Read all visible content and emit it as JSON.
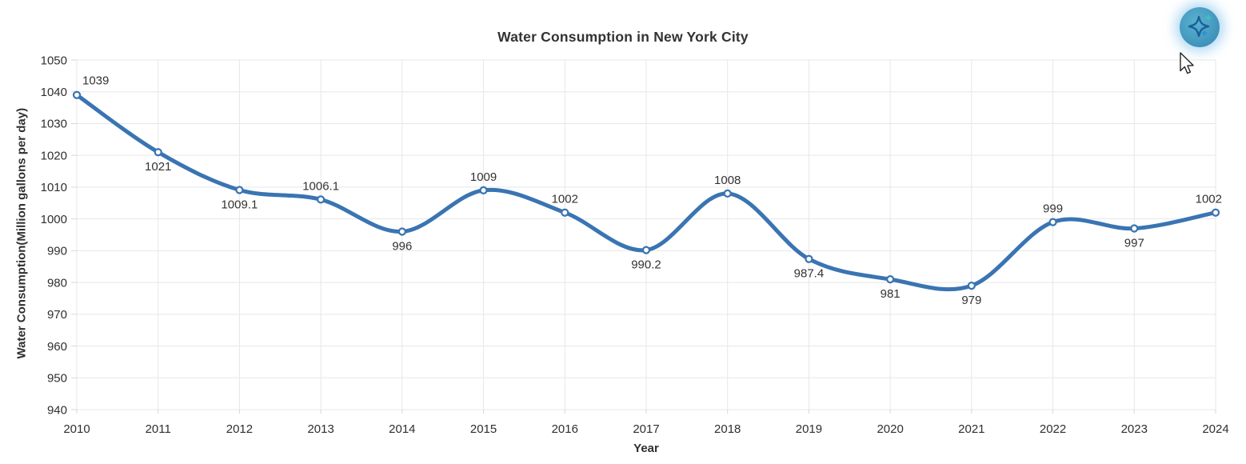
{
  "header": {
    "title": "Water Consumption in New York City"
  },
  "assistant": {
    "icon_name": "ai-sparkle-orb-icon"
  },
  "chart_data": {
    "type": "line",
    "title": "Water Consumption in New York City",
    "xlabel": "Year",
    "ylabel": "Water Consumption(Million gallons per day)",
    "categories": [
      "2010",
      "2011",
      "2012",
      "2013",
      "2014",
      "2015",
      "2016",
      "2017",
      "2018",
      "2019",
      "2020",
      "2021",
      "2022",
      "2023",
      "2024"
    ],
    "series": [
      {
        "name": "Water Consumption",
        "values": [
          1039,
          1021,
          1009.1,
          1006.1,
          996,
          1009,
          1002,
          990.2,
          1008,
          987.4,
          981,
          979,
          999,
          997,
          1002
        ],
        "labels": [
          "1039",
          "1021",
          "1009.1",
          "1006.1",
          "996",
          "1009",
          "1002",
          "990.2",
          "1008",
          "987.4",
          "981",
          "979",
          "999",
          "997",
          "1002"
        ],
        "label_positions": [
          "above-right",
          "below",
          "below",
          "above",
          "below",
          "above",
          "above",
          "below",
          "above",
          "below",
          "below",
          "below",
          "above",
          "below",
          "above-left"
        ]
      }
    ],
    "ylim": [
      940,
      1050
    ],
    "ytick_step": 10,
    "grid": true,
    "smooth": true,
    "legend": "none",
    "colors": {
      "line": "#3a74b2",
      "marker_fill": "#ffffff",
      "marker_stroke": "#3a74b2",
      "grid": "#e7e7ec",
      "tick": "#d7d7dc",
      "tick_label": "#2f2f2f",
      "data_label": "#333333",
      "title": "#333333"
    }
  }
}
